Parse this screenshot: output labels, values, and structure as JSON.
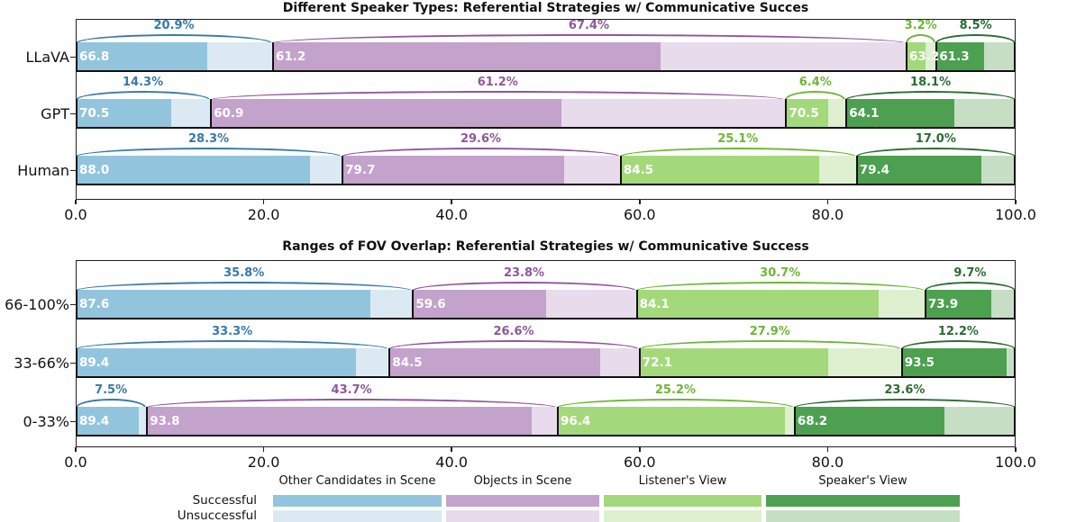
{
  "colors": {
    "other": {
      "solid": "#92c5dd",
      "light": "#dbe9f2",
      "line": "#3679a8"
    },
    "objects": {
      "solid": "#c3a2cc",
      "light": "#e7dbec",
      "line": "#8e569c"
    },
    "listener": {
      "solid": "#a4d97b",
      "light": "#def0d0",
      "line": "#6eb635"
    },
    "speaker": {
      "solid": "#4da050",
      "light": "#c6dfc4",
      "line": "#2c6b33"
    }
  },
  "chart_data": [
    {
      "type": "bar",
      "orientation": "horizontal",
      "stacked": true,
      "title": "Different Speaker Types: Referential Strategies w/ Communicative Succes",
      "categories": [
        "LLaVA",
        "GPT",
        "Human"
      ],
      "series": [
        {
          "name": "Other Candidates in Scene",
          "color_key": "other",
          "pct": [
            20.9,
            14.3,
            28.3
          ],
          "success_rate": [
            66.8,
            70.5,
            88.0
          ]
        },
        {
          "name": "Objects in Scene",
          "color_key": "objects",
          "pct": [
            67.4,
            61.2,
            29.6
          ],
          "success_rate": [
            61.2,
            60.9,
            79.7
          ]
        },
        {
          "name": "Listener's View",
          "color_key": "listener",
          "pct": [
            3.2,
            6.4,
            25.1
          ],
          "success_rate": [
            63.2,
            70.5,
            84.5
          ]
        },
        {
          "name": "Speaker's View",
          "color_key": "speaker",
          "pct": [
            8.5,
            18.1,
            17.0
          ],
          "success_rate": [
            61.3,
            64.1,
            79.4
          ]
        }
      ],
      "xlim": [
        0,
        100
      ],
      "x_tick_labels": [
        "0.0",
        "20.0",
        "40.0",
        "60.0",
        "80.0",
        "100.0"
      ],
      "grid": false
    },
    {
      "type": "bar",
      "orientation": "horizontal",
      "stacked": true,
      "title": "Ranges of FOV Overlap: Referential Strategies w/ Communicative Success",
      "categories": [
        "66-100%",
        "33-66%",
        "0-33%"
      ],
      "series": [
        {
          "name": "Other Candidates in Scene",
          "color_key": "other",
          "pct": [
            35.8,
            33.3,
            7.5
          ],
          "success_rate": [
            87.6,
            89.4,
            89.4
          ]
        },
        {
          "name": "Objects in Scene",
          "color_key": "objects",
          "pct": [
            23.8,
            26.6,
            43.7
          ],
          "success_rate": [
            59.6,
            84.5,
            93.8
          ]
        },
        {
          "name": "Listener's View",
          "color_key": "listener",
          "pct": [
            30.7,
            27.9,
            25.2
          ],
          "success_rate": [
            84.1,
            72.1,
            96.4
          ]
        },
        {
          "name": "Speaker's View",
          "color_key": "speaker",
          "pct": [
            9.7,
            12.2,
            23.6
          ],
          "success_rate": [
            73.9,
            93.5,
            68.2
          ]
        }
      ],
      "xlim": [
        0,
        100
      ],
      "x_tick_labels": [
        "0.0",
        "20.0",
        "40.0",
        "60.0",
        "80.0",
        "100.0"
      ],
      "grid": false
    }
  ],
  "legend": {
    "row_labels": [
      "Successful",
      "Unsuccessful"
    ],
    "columns": [
      {
        "key": "other",
        "label": "Other Candidates in Scene"
      },
      {
        "key": "objects",
        "label": "Objects in Scene"
      },
      {
        "key": "listener",
        "label": "Listener's View"
      },
      {
        "key": "speaker",
        "label": "Speaker's View"
      }
    ]
  }
}
